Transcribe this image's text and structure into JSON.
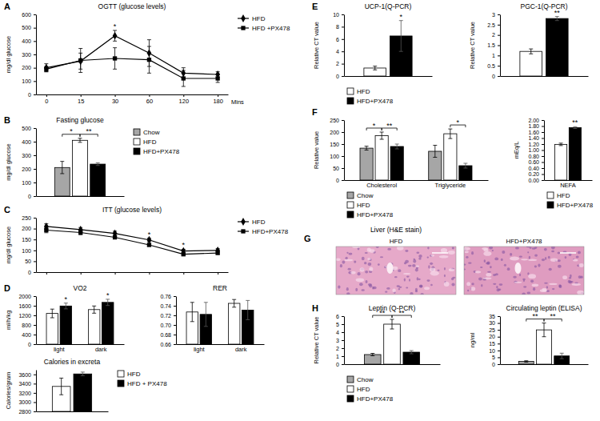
{
  "chart_data": [
    {
      "panel": "A",
      "type": "line",
      "title": "OGTT (glucose levels)",
      "x_label": "Mins",
      "y_label": "mg/dl glucose",
      "categories": [
        "0",
        "15",
        "30",
        "60",
        "120",
        "180"
      ],
      "series": [
        {
          "name": "HFD",
          "color": "#000000",
          "marker": "diamond",
          "values": [
            200,
            250,
            440,
            310,
            160,
            150
          ],
          "errors": [
            30,
            60,
            40,
            100,
            40,
            20
          ]
        },
        {
          "name": "HFD +PX478",
          "color": "#000000",
          "marker": "square",
          "values": [
            190,
            255,
            270,
            260,
            120,
            120
          ],
          "errors": [
            20,
            90,
            80,
            100,
            60,
            30
          ]
        }
      ],
      "ylim": [
        0,
        600
      ],
      "yticks": [
        0,
        100,
        200,
        300,
        400,
        500,
        600
      ],
      "legend": "right",
      "annotations": [
        {
          "text": "*",
          "category": 2
        }
      ]
    },
    {
      "panel": "B",
      "type": "bar",
      "title": "Fasting glucose",
      "y_label": "mg/dl glucose",
      "categories": [
        null
      ],
      "series": [
        {
          "name": "Chow",
          "color": "#a6a6a6",
          "values": [
            210
          ],
          "errors": [
            45
          ]
        },
        {
          "name": "HFD",
          "color": "#ffffff",
          "values": [
            410
          ],
          "errors": [
            15
          ]
        },
        {
          "name": "HFD+PX478",
          "color": "#000000",
          "values": [
            235
          ],
          "errors": [
            10
          ]
        }
      ],
      "ylim": [
        0,
        500
      ],
      "yticks": [
        0,
        100,
        200,
        300,
        400,
        500
      ],
      "legend": "right",
      "tick_labels": "y",
      "annotations": [
        {
          "text": "*",
          "category": 0,
          "from": 0,
          "to": 1
        },
        {
          "text": "**",
          "category": 0,
          "from": 1,
          "to": 2
        }
      ]
    },
    {
      "panel": "C",
      "type": "line",
      "title": "ITT (glucose levels)",
      "y_label": "mg/dl glucose",
      "categories": [
        null,
        null,
        null,
        null,
        null,
        null
      ],
      "series": [
        {
          "name": "HFD",
          "color": "#000000",
          "marker": "diamond",
          "values": [
            210,
            195,
            178,
            148,
            97,
            100
          ],
          "errors": [
            12,
            10,
            10,
            8,
            8,
            8
          ]
        },
        {
          "name": "HFD+PX478",
          "color": "#000000",
          "marker": "square",
          "values": [
            193,
            182,
            160,
            125,
            82,
            88
          ],
          "errors": [
            12,
            10,
            8,
            6,
            6,
            6
          ]
        }
      ],
      "ylim": [
        0,
        250
      ],
      "yticks": [
        0,
        50,
        100,
        150,
        200,
        250
      ],
      "legend": "right",
      "tick_labels": "y",
      "annotations": [
        {
          "text": "*",
          "category": 3
        },
        {
          "text": "*",
          "category": 4
        }
      ]
    },
    {
      "panel": "D",
      "type": "bar",
      "title": "VO2",
      "y_label": "ml/h/kg",
      "categories": [
        "light",
        "dark"
      ],
      "series": [
        {
          "color": "#ffffff",
          "values": [
            1280,
            1440
          ],
          "errors": [
            180,
            150
          ]
        },
        {
          "color": "#000000",
          "values": [
            1590,
            1740
          ],
          "errors": [
            120,
            130
          ]
        }
      ],
      "ylim": [
        0,
        2000
      ],
      "yticks": [
        0,
        400,
        800,
        1200,
        1600,
        2000
      ],
      "annotations": [
        {
          "text": "*",
          "category": 0,
          "series": 1
        },
        {
          "text": "*",
          "category": 1,
          "series": 1
        }
      ]
    },
    {
      "type": "bar",
      "title": "RER",
      "categories": [
        "light",
        "dark"
      ],
      "series": [
        {
          "color": "#ffffff",
          "values": [
            0.727,
            0.745
          ],
          "errors": [
            0.02,
            0.008
          ]
        },
        {
          "color": "#000000",
          "values": [
            0.722,
            0.731
          ],
          "errors": [
            0.025,
            0.02
          ]
        }
      ],
      "ylim": [
        0.66,
        0.76
      ],
      "yticks": [
        0.66,
        0.68,
        {
          "value": 0.7,
          "label": "0.70"
        },
        0.72,
        0.74,
        0.76
      ]
    },
    {
      "type": "bar",
      "title": "Calories in excreta",
      "y_label": "Calories/gram",
      "categories": [
        null
      ],
      "series": [
        {
          "name": "HFD",
          "color": "#ffffff",
          "values": [
            3340
          ],
          "errors": [
            180
          ]
        },
        {
          "name": "HFD + PX478",
          "color": "#000000",
          "values": [
            3610
          ],
          "errors": [
            40
          ]
        }
      ],
      "ylim": [
        2800,
        3700
      ],
      "yticks": [
        2800,
        3000,
        3200,
        3400,
        3600
      ],
      "legend": "right",
      "tick_labels": "y"
    },
    {
      "panel": "E",
      "type": "bar",
      "title": "UCP-1(Q-PCR)",
      "y_label": "Relative CT value",
      "categories": [
        null
      ],
      "series": [
        {
          "name": "HFD",
          "color": "#ffffff",
          "values": [
            1.3
          ],
          "errors": [
            0.3
          ]
        },
        {
          "name": "HFD+PX478",
          "color": "#000000",
          "values": [
            6.5
          ],
          "errors": [
            2.5
          ]
        }
      ],
      "ylim": [
        0,
        10
      ],
      "yticks": [
        0,
        2,
        4,
        6,
        8,
        10
      ],
      "legend": "bottom",
      "tick_labels": "y",
      "annotations": [
        {
          "text": "*",
          "category": 0,
          "series": 1
        }
      ]
    },
    {
      "type": "bar",
      "title": "PGC-1(Q-PCR)",
      "y_label": "Relative CT value",
      "categories": [
        null
      ],
      "series": [
        {
          "color": "#ffffff",
          "values": [
            1.2
          ],
          "errors": [
            0.12
          ]
        },
        {
          "color": "#000000",
          "values": [
            2.8
          ],
          "errors": [
            0.1
          ]
        }
      ],
      "ylim": [
        0,
        3
      ],
      "yticks": [
        0,
        0.5,
        1,
        1.5,
        2,
        2.5,
        3
      ],
      "tick_labels": "y",
      "annotations": [
        {
          "text": "**",
          "category": 0,
          "series": 1
        }
      ]
    },
    {
      "panel": "F",
      "type": "bar",
      "y_label": "Relative value",
      "categories": [
        "Cholesterol",
        "Triglyceride"
      ],
      "series": [
        {
          "name": "Chow",
          "color": "#a6a6a6",
          "values": [
            133,
            120
          ],
          "errors": [
            8,
            25
          ]
        },
        {
          "name": "HFD",
          "color": "#ffffff",
          "values": [
            185,
            193
          ],
          "errors": [
            15,
            20
          ]
        },
        {
          "name": "HFD+PX478",
          "color": "#000000",
          "values": [
            140,
            60
          ],
          "errors": [
            10,
            10
          ]
        }
      ],
      "ylim": [
        0,
        250
      ],
      "yticks": [
        0,
        50,
        100,
        150,
        200,
        250
      ],
      "legend": "bottom",
      "annotations": [
        {
          "text": "*",
          "category": 0,
          "from": 0,
          "to": 1
        },
        {
          "text": "**",
          "category": 0,
          "from": 1,
          "to": 2
        },
        {
          "text": "*",
          "category": 1,
          "from": 1,
          "to": 2
        }
      ]
    },
    {
      "type": "bar",
      "y_label": "mEq/L",
      "categories": [
        "NEFA"
      ],
      "series": [
        {
          "name": "HFD",
          "color": "#ffffff",
          "values": [
            1.19
          ],
          "errors": [
            0.04
          ]
        },
        {
          "name": "HFD+PX478",
          "color": "#000000",
          "values": [
            1.75
          ],
          "errors": [
            0.03
          ]
        }
      ],
      "ylim": [
        0,
        2
      ],
      "yticks": [
        {
          "value": 0,
          "label": "0.00"
        },
        {
          "value": 0.2,
          "label": "0.20"
        },
        {
          "value": 0.4,
          "label": "0.40"
        },
        {
          "value": 0.6,
          "label": "0.60"
        },
        {
          "value": 0.8,
          "label": "0.80"
        },
        {
          "value": 1,
          "label": "1.00"
        },
        {
          "value": 1.2,
          "label": "1.20"
        },
        {
          "value": 1.4,
          "label": "1.40"
        },
        {
          "value": 1.6,
          "label": "1.60"
        },
        {
          "value": 1.8,
          "label": "1.80"
        },
        {
          "value": 2,
          "label": "2.00"
        }
      ],
      "legend": "bottom",
      "annotations": [
        {
          "text": "**",
          "category": 0,
          "series": 1
        }
      ]
    },
    {
      "panel": "G",
      "type": "image",
      "title": "Liver (H&E stain)",
      "labels": [
        "HFD",
        "HFD+PX478"
      ]
    },
    {
      "panel": "H",
      "type": "bar",
      "title": "Leptin (Q-PCR)",
      "y_label": "Relative CT value",
      "categories": [
        null
      ],
      "series": [
        {
          "name": "Chow",
          "color": "#a6a6a6",
          "values": [
            1.2
          ],
          "errors": [
            0.15
          ]
        },
        {
          "name": "HFD",
          "color": "#ffffff",
          "values": [
            5.0
          ],
          "errors": [
            0.6
          ]
        },
        {
          "name": "HFD+PX478",
          "color": "#000000",
          "values": [
            1.5
          ],
          "errors": [
            0.2
          ]
        }
      ],
      "ylim": [
        0,
        6
      ],
      "yticks": [
        0,
        1,
        2,
        3,
        4,
        5,
        6
      ],
      "legend": "bottom",
      "tick_labels": "y",
      "annotations": [
        {
          "text": "**",
          "category": 0,
          "from": 0,
          "to": 1
        },
        {
          "text": "**",
          "category": 0,
          "from": 1,
          "to": 2
        }
      ]
    },
    {
      "type": "bar",
      "title": "Circulating leptin (ELISA)",
      "y_label": "ng/ml",
      "categories": [
        null
      ],
      "series": [
        {
          "color": "#a6a6a6",
          "values": [
            2
          ],
          "errors": [
            0.5
          ]
        },
        {
          "color": "#ffffff",
          "values": [
            25
          ],
          "errors": [
            5
          ]
        },
        {
          "color": "#000000",
          "values": [
            6
          ],
          "errors": [
            2
          ]
        }
      ],
      "ylim": [
        0,
        35
      ],
      "yticks": [
        0,
        5,
        10,
        15,
        20,
        25,
        30,
        35
      ],
      "tick_labels": "y",
      "annotations": [
        {
          "text": "**",
          "category": 0,
          "from": 0,
          "to": 1
        },
        {
          "text": "**",
          "category": 0,
          "from": 1,
          "to": 2
        }
      ]
    }
  ]
}
